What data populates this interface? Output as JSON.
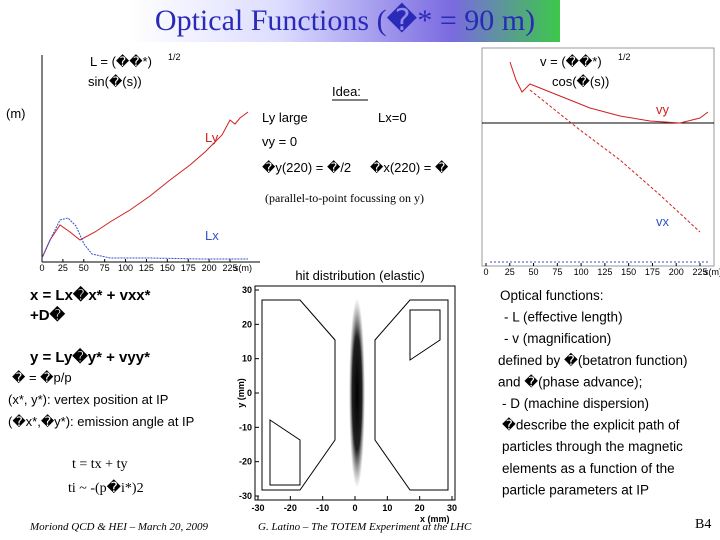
{
  "header": {
    "title": "Optical Functions (�* = 90 m)"
  },
  "left_plot": {
    "formula": "L = (��*)",
    "exponent": "1/2",
    "formula_2": "sin(�(s))",
    "unit": "(m)",
    "curve_y": "Ly",
    "curve_x": "Lx",
    "ticks": [
      "0",
      "25",
      "50",
      "75",
      "100",
      "125",
      "150",
      "175",
      "200",
      "225"
    ],
    "axis_label": "s(m)"
  },
  "right_plot": {
    "formula": "v = (��*)",
    "exponent": "1/2",
    "formula_2": "cos(�(s))",
    "curve_y": "vy",
    "curve_x": "vx",
    "ticks": [
      "0",
      "25",
      "50",
      "75",
      "100",
      "125",
      "150",
      "175",
      "200",
      "225"
    ],
    "axis_label": "s(m)"
  },
  "idea": {
    "heading": "Idea:",
    "lines": [
      "Ly large",
      "Lx=0",
      "vy = 0",
      "�y(220) = �/2",
      "�x(220) = �",
      "(parallel-to-point focussing on y)"
    ]
  },
  "equations": {
    "lines": [
      "x = Lx�x* + vxx*",
      "+D�",
      "y = Ly�y* + vyy*",
      "� = �p/p",
      "(x*, y*):  vertex position at IP",
      "(�x*,�y*): emission angle at IP",
      "t = tx + ty",
      "ti ~ -(p�i*)2"
    ]
  },
  "scatter": {
    "title": "hit distribution (elastic)",
    "y_label": "y (mm)",
    "x_label": "x (mm)",
    "yticks": [
      30,
      20,
      10,
      0,
      -10,
      -20,
      -30
    ],
    "xticks": [
      -30,
      -20,
      -10,
      0,
      10,
      20,
      30
    ]
  },
  "notes": {
    "lines": [
      "Optical functions:",
      "- L (effective length)",
      "- v (magnification)",
      "defined by �(betatron function)",
      "and �(phase advance);",
      "- D (machine dispersion)",
      "�describe the explicit path of",
      "particles through the magnetic",
      "elements as a function of the",
      "particle parameters at IP"
    ]
  },
  "footer": {
    "left": "Moriond QCD & HEI – March 20, 2009",
    "center": "G. Latino – The TOTEM Experiment at the LHC",
    "page": "B4"
  }
}
